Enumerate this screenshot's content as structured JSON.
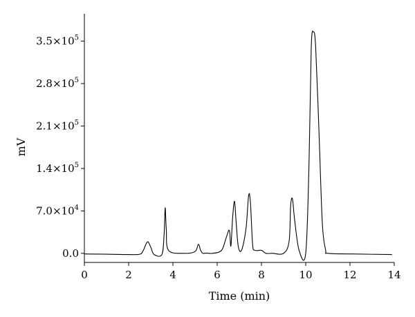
{
  "chart_data": {
    "type": "line",
    "xlabel": "Time (min)",
    "ylabel": "mV",
    "xlim": [
      0,
      14
    ],
    "ylim": [
      -15000,
      395000
    ],
    "grid": false,
    "x_ticks": [
      {
        "value": 0,
        "label": "0"
      },
      {
        "value": 2,
        "label": "2"
      },
      {
        "value": 4,
        "label": "4"
      },
      {
        "value": 6,
        "label": "6"
      },
      {
        "value": 8,
        "label": "8"
      },
      {
        "value": 10,
        "label": "10"
      },
      {
        "value": 12,
        "label": "12"
      },
      {
        "value": 14,
        "label": "14"
      }
    ],
    "y_ticks": [
      {
        "value": 0,
        "mantissa": "0.0",
        "exp": ""
      },
      {
        "value": 70000,
        "mantissa": "7.0×10",
        "exp": "4"
      },
      {
        "value": 140000,
        "mantissa": "1.4×10",
        "exp": "5"
      },
      {
        "value": 210000,
        "mantissa": "2.1×10",
        "exp": "5"
      },
      {
        "value": 280000,
        "mantissa": "2.8×10",
        "exp": "5"
      },
      {
        "value": 350000,
        "mantissa": "3.5×10",
        "exp": "5"
      }
    ],
    "series": [
      {
        "color": "#000000",
        "x": [
          0.0,
          1.0,
          2.0,
          2.5,
          2.65,
          2.85,
          3.0,
          3.15,
          3.5,
          3.6,
          3.65,
          3.7,
          3.8,
          4.5,
          5.0,
          5.15,
          5.25,
          5.35,
          5.5,
          5.8,
          6.2,
          6.4,
          6.55,
          6.62,
          6.7,
          6.78,
          6.85,
          6.95,
          7.1,
          7.3,
          7.42,
          7.5,
          7.6,
          7.7,
          8.0,
          8.2,
          8.5,
          9.0,
          9.25,
          9.32,
          9.4,
          9.5,
          9.7,
          10.0,
          10.15,
          10.25,
          10.35,
          10.45,
          10.6,
          10.75,
          10.9,
          11.0,
          12.0,
          13.9
        ],
        "y": [
          -1000,
          -1500,
          -2000,
          -1500,
          4000,
          19000,
          10000,
          -2000,
          -2000,
          30000,
          75000,
          40000,
          5000,
          0,
          3000,
          15000,
          5000,
          0,
          500,
          0,
          5000,
          25000,
          38000,
          12000,
          60000,
          86000,
          55000,
          12000,
          5000,
          40000,
          95000,
          85000,
          15000,
          5000,
          5000,
          0,
          0,
          0,
          20000,
          78000,
          90000,
          55000,
          5000,
          0,
          150000,
          340000,
          365000,
          340000,
          200000,
          50000,
          5000,
          0,
          -1000,
          -2000
        ]
      }
    ]
  }
}
